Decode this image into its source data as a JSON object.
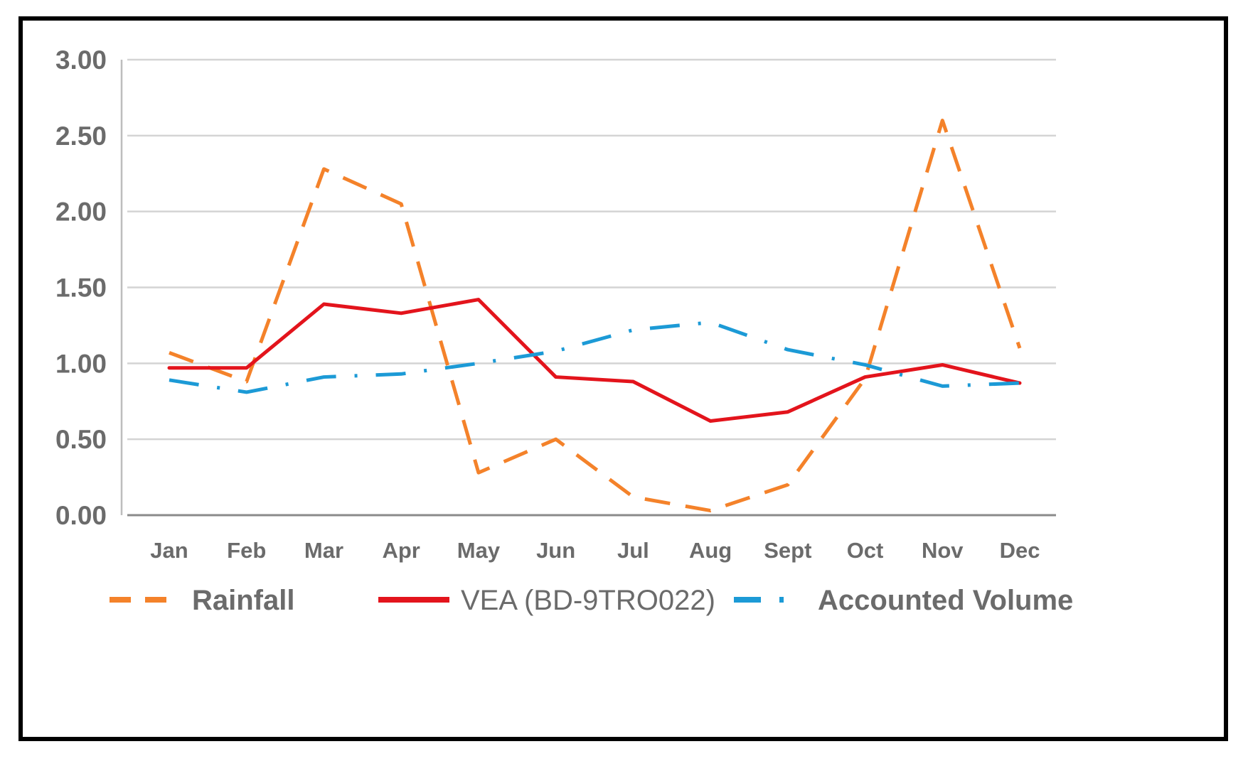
{
  "chart_data": {
    "type": "line",
    "title": "",
    "xlabel": "",
    "ylabel": "",
    "ylim": [
      0,
      3
    ],
    "yticks": [
      "0.00",
      "0.50",
      "1.00",
      "1.50",
      "2.00",
      "2.50",
      "3.00"
    ],
    "categories": [
      "Jan",
      "Feb",
      "Mar",
      "Apr",
      "May",
      "Jun",
      "Jul",
      "Aug",
      "Sept",
      "Oct",
      "Nov",
      "Dec"
    ],
    "grid": true,
    "legend_position": "bottom",
    "series": [
      {
        "name": "Rainfall",
        "color": "#f4822a",
        "style": "dashed",
        "values": [
          1.07,
          0.88,
          2.28,
          2.05,
          0.28,
          0.5,
          0.12,
          0.03,
          0.2,
          0.9,
          2.6,
          1.1
        ]
      },
      {
        "name": "VEA (BD-9TRO022)",
        "color": "#e3141c",
        "style": "solid",
        "values": [
          0.97,
          0.97,
          1.39,
          1.33,
          1.42,
          0.91,
          0.88,
          0.62,
          0.68,
          0.91,
          0.99,
          0.87
        ]
      },
      {
        "name": "Accounted Volume",
        "color": "#1c9ad6",
        "style": "dash-dot",
        "values": [
          0.89,
          0.81,
          0.91,
          0.93,
          1.0,
          1.08,
          1.22,
          1.27,
          1.09,
          0.99,
          0.85,
          0.87
        ]
      }
    ]
  }
}
